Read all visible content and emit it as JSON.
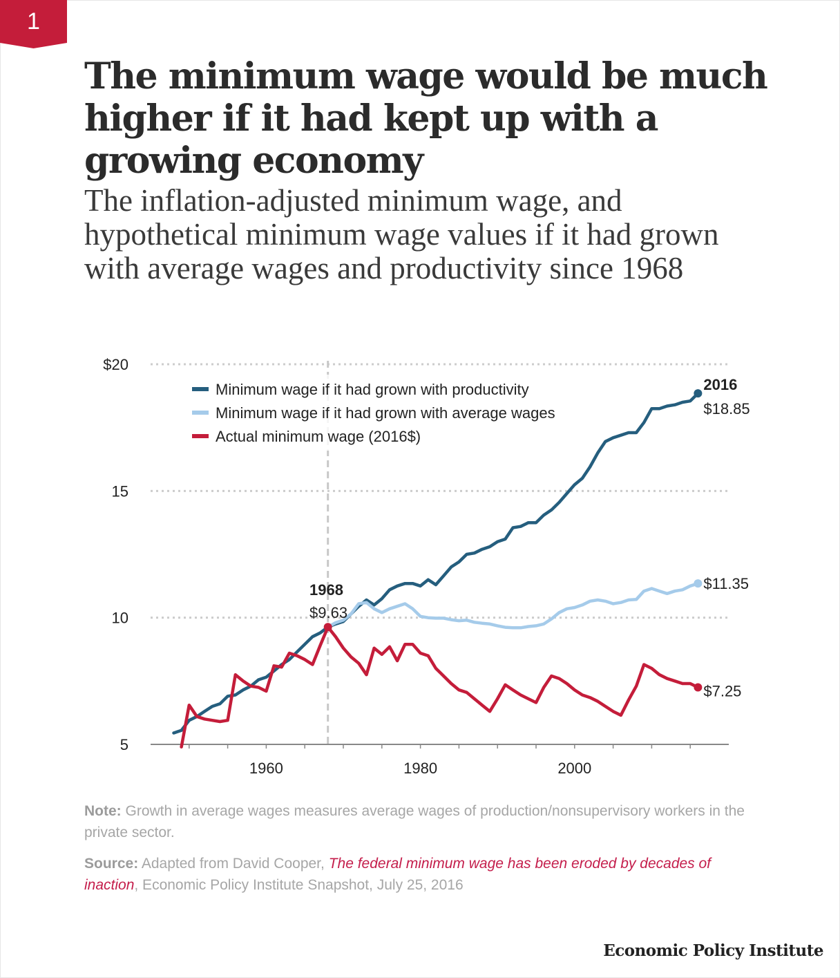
{
  "figure_number": "1",
  "title": "The minimum wage would be much higher if it had kept up with a growing economy",
  "subtitle": "The inflation-adjusted minimum wage, and hypothetical minimum wage values if it had grown with average wages and productivity since 1968",
  "note": {
    "label": "Note:",
    "text": " Growth in average wages measures average wages of production/nonsupervisory workers in the private sector."
  },
  "source": {
    "label": "Source:",
    "pre": " Adapted from David Cooper, ",
    "link_text": "The federal minimum wage has been eroded by decades of inaction",
    "post": ", Economic Policy Institute Snapshot, July 25, 2016"
  },
  "footer": "Economic Policy Institute",
  "colors": {
    "badge": "#c41d3a",
    "productivity": "#255e7e",
    "average_wages": "#a5cbea",
    "actual": "#c41d3a",
    "grid": "#cccccc",
    "axis": "#888888",
    "marker_1968": "#c8c8c8"
  },
  "chart_data": {
    "type": "line",
    "xlim": [
      1945,
      2020
    ],
    "ylim": [
      5,
      20
    ],
    "y_ticks": [
      {
        "value": 20,
        "label": "$20"
      },
      {
        "value": 15,
        "label": "15"
      },
      {
        "value": 10,
        "label": "10"
      },
      {
        "value": 5,
        "label": "5"
      }
    ],
    "x_ticks": [
      1960,
      1980,
      2000
    ],
    "grid": "horizontal dotted",
    "legend_placement": "top-left",
    "reference_year": 1968,
    "series": [
      {
        "key": "productivity",
        "name": "Minimum wage if it had grown with productivity",
        "points": [
          [
            1948,
            5.45
          ],
          [
            1949,
            5.55
          ],
          [
            1950,
            5.95
          ],
          [
            1951,
            6.1
          ],
          [
            1952,
            6.3
          ],
          [
            1953,
            6.5
          ],
          [
            1954,
            6.6
          ],
          [
            1955,
            6.9
          ],
          [
            1956,
            6.95
          ],
          [
            1957,
            7.15
          ],
          [
            1958,
            7.3
          ],
          [
            1959,
            7.55
          ],
          [
            1960,
            7.65
          ],
          [
            1961,
            7.9
          ],
          [
            1962,
            8.15
          ],
          [
            1963,
            8.35
          ],
          [
            1964,
            8.65
          ],
          [
            1965,
            8.95
          ],
          [
            1966,
            9.25
          ],
          [
            1967,
            9.4
          ],
          [
            1968,
            9.63
          ],
          [
            1969,
            9.75
          ],
          [
            1970,
            9.85
          ],
          [
            1971,
            10.15
          ],
          [
            1972,
            10.45
          ],
          [
            1973,
            10.7
          ],
          [
            1974,
            10.5
          ],
          [
            1975,
            10.75
          ],
          [
            1976,
            11.1
          ],
          [
            1977,
            11.25
          ],
          [
            1978,
            11.35
          ],
          [
            1979,
            11.35
          ],
          [
            1980,
            11.25
          ],
          [
            1981,
            11.5
          ],
          [
            1982,
            11.3
          ],
          [
            1983,
            11.65
          ],
          [
            1984,
            12.0
          ],
          [
            1985,
            12.2
          ],
          [
            1986,
            12.5
          ],
          [
            1987,
            12.55
          ],
          [
            1988,
            12.7
          ],
          [
            1989,
            12.8
          ],
          [
            1990,
            13.0
          ],
          [
            1991,
            13.1
          ],
          [
            1992,
            13.55
          ],
          [
            1993,
            13.6
          ],
          [
            1994,
            13.75
          ],
          [
            1995,
            13.75
          ],
          [
            1996,
            14.05
          ],
          [
            1997,
            14.25
          ],
          [
            1998,
            14.55
          ],
          [
            1999,
            14.9
          ],
          [
            2000,
            15.25
          ],
          [
            2001,
            15.5
          ],
          [
            2002,
            15.95
          ],
          [
            2003,
            16.5
          ],
          [
            2004,
            16.95
          ],
          [
            2005,
            17.1
          ],
          [
            2006,
            17.2
          ],
          [
            2007,
            17.3
          ],
          [
            2008,
            17.3
          ],
          [
            2009,
            17.7
          ],
          [
            2010,
            18.25
          ],
          [
            2011,
            18.25
          ],
          [
            2012,
            18.35
          ],
          [
            2013,
            18.4
          ],
          [
            2014,
            18.5
          ],
          [
            2015,
            18.55
          ],
          [
            2016,
            18.85
          ]
        ]
      },
      {
        "key": "average_wages",
        "name": "Minimum wage if it had grown with average wages",
        "points": [
          [
            1968,
            9.63
          ],
          [
            1969,
            9.8
          ],
          [
            1970,
            9.9
          ],
          [
            1971,
            10.15
          ],
          [
            1972,
            10.55
          ],
          [
            1973,
            10.6
          ],
          [
            1974,
            10.35
          ],
          [
            1975,
            10.2
          ],
          [
            1976,
            10.35
          ],
          [
            1977,
            10.45
          ],
          [
            1978,
            10.55
          ],
          [
            1979,
            10.35
          ],
          [
            1980,
            10.05
          ],
          [
            1981,
            10.0
          ],
          [
            1982,
            9.98
          ],
          [
            1983,
            9.98
          ],
          [
            1984,
            9.92
          ],
          [
            1985,
            9.88
          ],
          [
            1986,
            9.9
          ],
          [
            1987,
            9.82
          ],
          [
            1988,
            9.78
          ],
          [
            1989,
            9.75
          ],
          [
            1990,
            9.68
          ],
          [
            1991,
            9.62
          ],
          [
            1992,
            9.6
          ],
          [
            1993,
            9.6
          ],
          [
            1994,
            9.65
          ],
          [
            1995,
            9.68
          ],
          [
            1996,
            9.75
          ],
          [
            1997,
            9.95
          ],
          [
            1998,
            10.2
          ],
          [
            1999,
            10.35
          ],
          [
            2000,
            10.4
          ],
          [
            2001,
            10.5
          ],
          [
            2002,
            10.65
          ],
          [
            2003,
            10.7
          ],
          [
            2004,
            10.65
          ],
          [
            2005,
            10.55
          ],
          [
            2006,
            10.6
          ],
          [
            2007,
            10.7
          ],
          [
            2008,
            10.72
          ],
          [
            2009,
            11.05
          ],
          [
            2010,
            11.15
          ],
          [
            2011,
            11.05
          ],
          [
            2012,
            10.95
          ],
          [
            2013,
            11.05
          ],
          [
            2014,
            11.1
          ],
          [
            2015,
            11.25
          ],
          [
            2016,
            11.35
          ]
        ]
      },
      {
        "key": "actual",
        "name": "Actual minimum wage (2016$)",
        "points": [
          [
            1949,
            4.9
          ],
          [
            1950,
            6.55
          ],
          [
            1951,
            6.1
          ],
          [
            1952,
            6.0
          ],
          [
            1953,
            5.95
          ],
          [
            1954,
            5.9
          ],
          [
            1955,
            5.95
          ],
          [
            1956,
            7.75
          ],
          [
            1957,
            7.5
          ],
          [
            1958,
            7.3
          ],
          [
            1959,
            7.25
          ],
          [
            1960,
            7.1
          ],
          [
            1961,
            8.1
          ],
          [
            1962,
            8.05
          ],
          [
            1963,
            8.6
          ],
          [
            1964,
            8.5
          ],
          [
            1965,
            8.35
          ],
          [
            1966,
            8.15
          ],
          [
            1967,
            8.9
          ],
          [
            1968,
            9.63
          ],
          [
            1969,
            9.25
          ],
          [
            1970,
            8.8
          ],
          [
            1971,
            8.45
          ],
          [
            1972,
            8.2
          ],
          [
            1973,
            7.75
          ],
          [
            1974,
            8.8
          ],
          [
            1975,
            8.55
          ],
          [
            1976,
            8.85
          ],
          [
            1977,
            8.3
          ],
          [
            1978,
            8.95
          ],
          [
            1979,
            8.95
          ],
          [
            1980,
            8.6
          ],
          [
            1981,
            8.5
          ],
          [
            1982,
            8.0
          ],
          [
            1983,
            7.7
          ],
          [
            1984,
            7.4
          ],
          [
            1985,
            7.15
          ],
          [
            1986,
            7.05
          ],
          [
            1987,
            6.8
          ],
          [
            1988,
            6.55
          ],
          [
            1989,
            6.3
          ],
          [
            1990,
            6.8
          ],
          [
            1991,
            7.35
          ],
          [
            1992,
            7.15
          ],
          [
            1993,
            6.95
          ],
          [
            1994,
            6.8
          ],
          [
            1995,
            6.65
          ],
          [
            1996,
            7.25
          ],
          [
            1997,
            7.7
          ],
          [
            1998,
            7.6
          ],
          [
            1999,
            7.4
          ],
          [
            2000,
            7.15
          ],
          [
            2001,
            6.95
          ],
          [
            2002,
            6.85
          ],
          [
            2003,
            6.7
          ],
          [
            2004,
            6.5
          ],
          [
            2005,
            6.3
          ],
          [
            2006,
            6.15
          ],
          [
            2007,
            6.75
          ],
          [
            2008,
            7.3
          ],
          [
            2009,
            8.15
          ],
          [
            2010,
            8.0
          ],
          [
            2011,
            7.75
          ],
          [
            2012,
            7.6
          ],
          [
            2013,
            7.5
          ],
          [
            2014,
            7.4
          ],
          [
            2015,
            7.4
          ],
          [
            2016,
            7.25
          ]
        ]
      }
    ],
    "annotations": {
      "year_1968": "1968",
      "value_1968": "$9.63",
      "year_2016": "2016",
      "end_productivity": "$18.85",
      "end_average_wages": "$11.35",
      "end_actual": "$7.25"
    }
  }
}
